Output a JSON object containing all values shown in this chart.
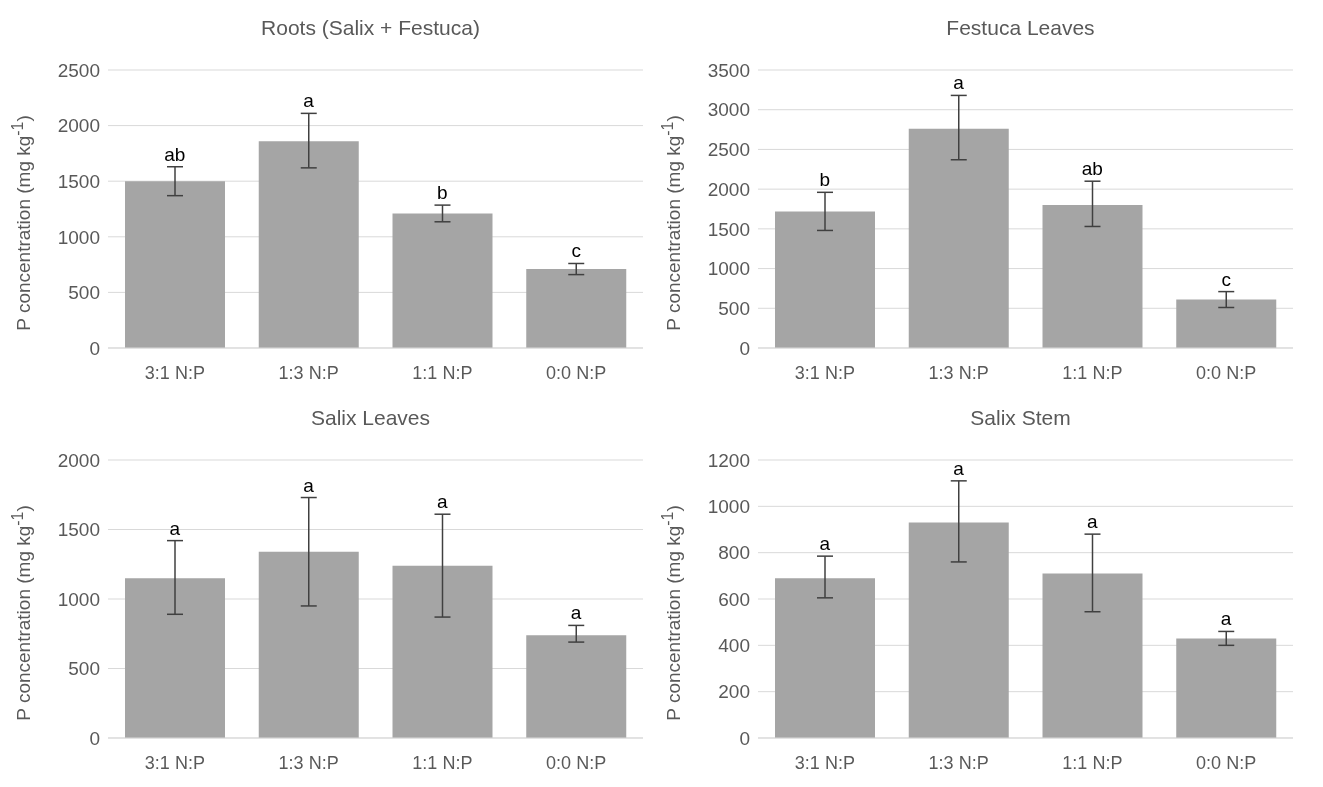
{
  "chart_data": [
    {
      "type": "bar",
      "title": "Roots (Salix + Festuca)",
      "ylabel": "P concentration (mg kg$^{-1}$)",
      "categories": [
        "3:1 N:P",
        "1:3 N:P",
        "1:1 N:P",
        "0:0 N:P"
      ],
      "values": [
        1500,
        1860,
        1210,
        710
      ],
      "errors": [
        130,
        [
          1620,
          2110
        ],
        75,
        50
      ],
      "color": "#a5a5a5",
      "ylim": [
        0,
        2500
      ],
      "yticks": [
        0,
        500,
        1000,
        1500,
        2000,
        2500
      ],
      "grid": "y",
      "annotations": [
        {
          "text": "ab",
          "x": "3:1 N:P",
          "y": 1630
        },
        {
          "text": "a",
          "x": "1:3 N:P",
          "y": 2110
        },
        {
          "text": "b",
          "x": "1:1 N:P",
          "y": 1285
        },
        {
          "text": "c",
          "x": "0:0 N:P",
          "y": 760
        }
      ]
    },
    {
      "type": "bar",
      "title": "Festuca Leaves",
      "ylabel": "P concentration (mg kg$^{-1}$)",
      "categories": [
        "3:1 N:P",
        "1:3 N:P",
        "1:1 N:P",
        "0:0 N:P"
      ],
      "values": [
        1720,
        2760,
        1800,
        610
      ],
      "errors": [
        240,
        [
          2370,
          3180
        ],
        [
          1530,
          2100
        ],
        100
      ],
      "color": "#a5a5a5",
      "ylim": [
        0,
        3500
      ],
      "yticks": [
        0,
        500,
        1000,
        1500,
        2000,
        2500,
        3000,
        3500
      ],
      "grid": "y",
      "annotations": [
        {
          "text": "b",
          "x": "3:1 N:P",
          "y": 1960
        },
        {
          "text": "a",
          "x": "1:3 N:P",
          "y": 3180
        },
        {
          "text": "ab",
          "x": "1:1 N:P",
          "y": 2100
        },
        {
          "text": "c",
          "x": "0:0 N:P",
          "y": 710
        }
      ]
    },
    {
      "type": "bar",
      "title": "Salix Leaves",
      "ylabel": "P concentration (mg kg$^{-1}$)",
      "categories": [
        "3:1 N:P",
        "1:3 N:P",
        "1:1 N:P",
        "0:0 N:P"
      ],
      "values": [
        1150,
        1340,
        1240,
        740
      ],
      "errors": [
        [
          890,
          1420
        ],
        [
          950,
          1730
        ],
        [
          870,
          1610
        ],
        [
          690,
          810
        ]
      ],
      "color": "#a5a5a5",
      "ylim": [
        0,
        2000
      ],
      "yticks": [
        0,
        500,
        1000,
        1500,
        2000
      ],
      "grid": "y",
      "annotations": [
        {
          "text": "a",
          "x": "3:1 N:P",
          "y": 1420
        },
        {
          "text": "a",
          "x": "1:3 N:P",
          "y": 1730
        },
        {
          "text": "a",
          "x": "1:1 N:P",
          "y": 1610
        },
        {
          "text": "a",
          "x": "0:0 N:P",
          "y": 810
        }
      ]
    },
    {
      "type": "bar",
      "title": "Salix Stem",
      "ylabel": "P concentration (mg kg$^{-1}$)",
      "categories": [
        "3:1 N:P",
        "1:3 N:P",
        "1:1 N:P",
        "0:0 N:P"
      ],
      "values": [
        690,
        930,
        710,
        430
      ],
      "errors": [
        [
          605,
          785
        ],
        [
          760,
          1110
        ],
        [
          545,
          880
        ],
        [
          400,
          460
        ]
      ],
      "color": "#a5a5a5",
      "ylim": [
        0,
        1200
      ],
      "yticks": [
        0,
        200,
        400,
        600,
        800,
        1000,
        1200
      ],
      "grid": "y",
      "annotations": [
        {
          "text": "a",
          "x": "3:1 N:P",
          "y": 785
        },
        {
          "text": "a",
          "x": "1:3 N:P",
          "y": 1110
        },
        {
          "text": "a",
          "x": "1:1 N:P",
          "y": 880
        },
        {
          "text": "a",
          "x": "0:0 N:P",
          "y": 460
        }
      ]
    }
  ]
}
